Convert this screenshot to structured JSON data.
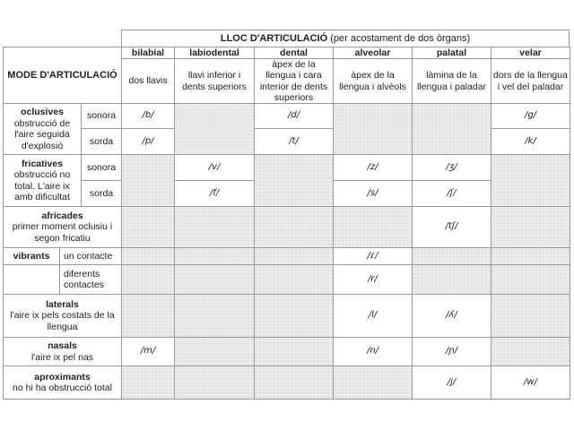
{
  "title": {
    "main": "LLOC D'ARTICULACIÓ",
    "sub": "(per acostament de dos òrgans)"
  },
  "mode_header": "MODE D'ARTICULACIÓ",
  "places": [
    {
      "name": "bilabial",
      "desc": "dos llavis"
    },
    {
      "name": "labiodental",
      "desc": "llavi inferior i dents superiors"
    },
    {
      "name": "dental",
      "desc": "àpex de la llengua i cara interior de dents superiors"
    },
    {
      "name": "alveolar",
      "desc": "àpex de la llengua i alvèols"
    },
    {
      "name": "palatal",
      "desc": "làmina de la llengua i paladar"
    },
    {
      "name": "velar",
      "desc": "dors de la llengua i vel del paladar"
    }
  ],
  "modes": [
    {
      "name": "oclusives",
      "desc": "obstrucció de l'aire seguida d'explosió",
      "subs": [
        {
          "label": "sonora",
          "cells": [
            "/b/",
            null,
            "/d/",
            null,
            null,
            "/g/"
          ]
        },
        {
          "label": "sorda",
          "cells": [
            "/p/",
            null,
            "/t/",
            null,
            null,
            "/k/"
          ]
        }
      ]
    },
    {
      "name": "fricatives",
      "desc": "obstrucció no total. L'aire ix amb dificultat",
      "subs": [
        {
          "label": "sonora",
          "cells": [
            null,
            "/v/",
            null,
            "/z/",
            "/ʒ/",
            null
          ]
        },
        {
          "label": "sorda",
          "cells": [
            null,
            "/f/",
            null,
            "/s/",
            "/ʃ/",
            null
          ]
        }
      ]
    },
    {
      "name": "africades",
      "desc": "primer moment oclusiu i segon fricatiu",
      "subs": [
        {
          "label": "",
          "cells": [
            null,
            null,
            null,
            null,
            "/tʃ/",
            null
          ]
        }
      ]
    },
    {
      "name": "vibrants",
      "desc": "",
      "subs": [
        {
          "label": "un contacte",
          "cells": [
            null,
            null,
            null,
            "/ɾ/",
            null,
            null
          ]
        },
        {
          "label": "diferents contactes",
          "cells": [
            null,
            null,
            null,
            "/r/",
            null,
            null
          ]
        }
      ]
    },
    {
      "name": "laterals",
      "desc": "l'aire ix pels costats de la llengua",
      "subs": [
        {
          "label": "",
          "cells": [
            null,
            null,
            null,
            "/l/",
            "/ʎ/",
            null
          ]
        }
      ]
    },
    {
      "name": "nasals",
      "desc": "l'aire ix pel nas",
      "subs": [
        {
          "label": "",
          "cells": [
            "/m/",
            null,
            null,
            "/n/",
            "/ɲ/",
            null
          ]
        }
      ]
    },
    {
      "name": "aproximants",
      "desc": "no hi ha obstrucció total",
      "subs": [
        {
          "label": "",
          "cells": [
            null,
            null,
            null,
            null,
            "/j/",
            "/w/"
          ]
        }
      ]
    }
  ]
}
